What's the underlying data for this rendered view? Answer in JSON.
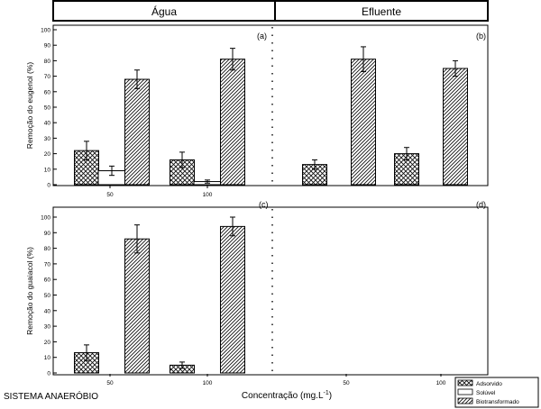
{
  "header": {
    "left": "Água",
    "right": "Efluente"
  },
  "footer": {
    "system": "SISTEMA ANAERÓBIO"
  },
  "xlabel": "Concentração (mg.L",
  "xlabel_sup": "-1",
  "xlabel_close": ")",
  "legend": [
    {
      "name": "Adsorvido",
      "pattern": "cross"
    },
    {
      "name": "Solúvel",
      "pattern": "none"
    },
    {
      "name": "Biotransformado",
      "pattern": "diag"
    }
  ],
  "chart_data": [
    {
      "type": "bar",
      "panel": "a",
      "panel_label": "(a)",
      "ylabel": "Remoção do eugenol (%)",
      "ylim": [
        0,
        100
      ],
      "yticks": [
        0,
        10,
        20,
        30,
        40,
        50,
        60,
        70,
        80,
        90,
        100
      ],
      "xticks": [
        "50",
        "100"
      ],
      "categories": [
        "50",
        "100"
      ],
      "series": [
        {
          "name": "Adsorvido",
          "values": [
            22,
            16
          ],
          "errors": [
            6,
            5
          ]
        },
        {
          "name": "Solúvel",
          "values": [
            9,
            2
          ],
          "errors": [
            3,
            1
          ]
        },
        {
          "name": "Biotransformado",
          "values": [
            68,
            81
          ],
          "errors": [
            6,
            7
          ]
        }
      ]
    },
    {
      "type": "bar",
      "panel": "b",
      "panel_label": "(b)",
      "ylabel": "",
      "ylim": [
        0,
        100
      ],
      "xticks": [],
      "categories": [
        "50",
        "100"
      ],
      "series": [
        {
          "name": "Adsorvido",
          "values": [
            13,
            20
          ],
          "errors": [
            3,
            4
          ]
        },
        {
          "name": "Biotransformado",
          "values": [
            81,
            75
          ],
          "errors": [
            8,
            5
          ]
        }
      ]
    },
    {
      "type": "bar",
      "panel": "c",
      "panel_label": "(c)",
      "ylabel": "Remoção do guaiacol (%)",
      "ylim": [
        0,
        100
      ],
      "yticks": [
        0,
        10,
        20,
        30,
        40,
        50,
        60,
        70,
        80,
        90,
        100
      ],
      "xticks": [
        "50",
        "100"
      ],
      "categories": [
        "50",
        "100"
      ],
      "series": [
        {
          "name": "Adsorvido",
          "values": [
            13,
            5
          ],
          "errors": [
            5,
            2
          ]
        },
        {
          "name": "Biotransformado",
          "values": [
            86,
            94
          ],
          "errors": [
            9,
            6
          ]
        }
      ]
    },
    {
      "type": "bar",
      "panel": "d",
      "panel_label": "(d)",
      "ylabel": "",
      "ylim": [
        0,
        100
      ],
      "xticks": [
        "50",
        "100"
      ],
      "categories": [
        "50",
        "100"
      ],
      "series": []
    }
  ]
}
